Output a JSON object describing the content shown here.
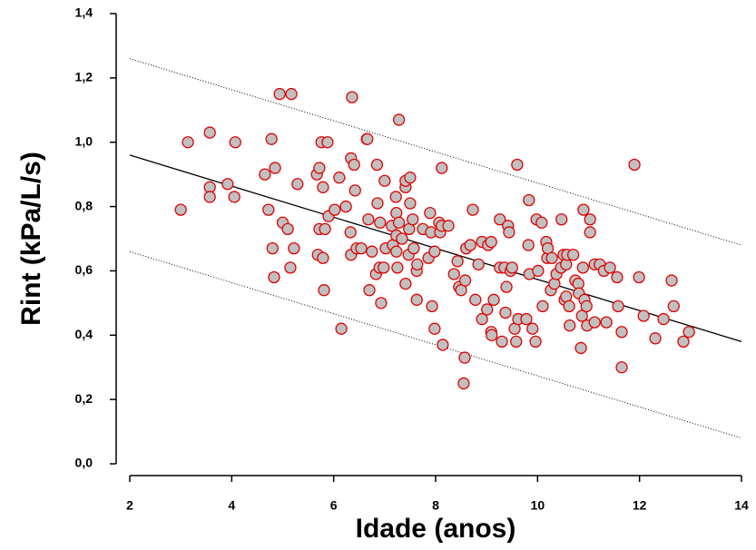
{
  "chart_data": {
    "type": "scatter",
    "x_label": "Idade (anos)",
    "y_label": "Rint (kPa/L/s)",
    "xlim": [
      2,
      14
    ],
    "xticks": [
      2,
      4,
      6,
      8,
      10,
      12,
      14
    ],
    "ylim": [
      0,
      1.4
    ],
    "yticks": [
      {
        "value": 0,
        "label": "0,0"
      },
      {
        "value": 0.2,
        "label": "0,2"
      },
      {
        "value": 0.4,
        "label": "0,4"
      },
      {
        "value": 0.6,
        "label": "0,6"
      },
      {
        "value": 0.8,
        "label": "0,8"
      },
      {
        "value": 1.0,
        "label": "1,0"
      },
      {
        "value": 1.2,
        "label": "1,2"
      },
      {
        "value": 1.4,
        "label": "1,4"
      }
    ],
    "marker_fill": "#c0c0c0",
    "marker_stroke": "#e00000",
    "x": [
      3.0,
      3.14,
      3.57,
      3.57,
      3.57,
      3.92,
      4.07,
      4.05,
      4.65,
      4.78,
      4.85,
      4.72,
      4.8,
      4.83,
      4.94,
      5.17,
      5.0,
      5.1,
      5.22,
      5.15,
      5.29,
      5.67,
      5.72,
      5.76,
      5.88,
      5.79,
      5.72,
      5.83,
      5.69,
      5.79,
      5.81,
      5.9,
      6.02,
      6.11,
      6.24,
      6.15,
      6.33,
      6.36,
      6.34,
      6.4,
      6.42,
      6.34,
      6.45,
      6.54,
      6.65,
      6.66,
      6.68,
      6.7,
      6.75,
      6.83,
      6.85,
      6.86,
      6.9,
      6.91,
      6.93,
      6.98,
      7.0,
      7.02,
      7.14,
      7.16,
      7.23,
      7.23,
      7.22,
      7.23,
      7.25,
      7.28,
      7.28,
      7.34,
      7.41,
      7.41,
      7.5,
      7.41,
      7.47,
      7.5,
      7.48,
      7.55,
      7.57,
      7.63,
      7.63,
      7.64,
      7.75,
      7.86,
      7.89,
      7.93,
      7.91,
      7.98,
      7.98,
      8.07,
      8.12,
      8.09,
      8.12,
      8.14,
      8.25,
      8.36,
      8.43,
      8.46,
      8.5,
      8.55,
      8.57,
      8.58,
      8.6,
      8.68,
      8.73,
      8.78,
      8.84,
      8.91,
      8.91,
      9.01,
      9.09,
      9.1,
      9.03,
      9.09,
      9.14,
      9.26,
      9.26,
      9.35,
      9.37,
      9.3,
      9.39,
      9.42,
      9.44,
      9.47,
      9.5,
      9.55,
      9.58,
      9.6,
      9.62,
      9.82,
      9.83,
      9.84,
      9.78,
      9.9,
      9.96,
      9.98,
      10.01,
      10.08,
      10.1,
      10.17,
      10.19,
      10.2,
      10.26,
      10.28,
      10.33,
      10.37,
      10.46,
      10.47,
      10.51,
      10.53,
      10.56,
      10.56,
      10.58,
      10.62,
      10.63,
      10.7,
      10.74,
      10.8,
      10.81,
      10.85,
      10.87,
      10.89,
      10.92,
      10.9,
      10.96,
      10.97,
      11.03,
      11.03,
      11.12,
      11.12,
      11.22,
      11.3,
      11.35,
      11.42,
      11.56,
      11.58,
      11.65,
      11.65,
      11.9,
      11.99,
      12.08,
      12.31,
      12.47,
      12.63,
      12.67,
      12.86,
      12.97
    ],
    "y": [
      0.79,
      1.0,
      1.03,
      0.86,
      0.83,
      0.87,
      1.0,
      0.83,
      0.9,
      1.01,
      0.92,
      0.79,
      0.67,
      0.58,
      1.15,
      1.15,
      0.75,
      0.73,
      0.67,
      0.61,
      0.87,
      0.9,
      0.92,
      1.0,
      1.0,
      0.86,
      0.73,
      0.73,
      0.65,
      0.64,
      0.54,
      0.77,
      0.79,
      0.89,
      0.8,
      0.42,
      0.72,
      1.14,
      0.95,
      0.93,
      0.85,
      0.65,
      0.67,
      0.67,
      1.01,
      1.01,
      0.76,
      0.54,
      0.66,
      0.59,
      0.93,
      0.81,
      0.61,
      0.75,
      0.5,
      0.61,
      0.88,
      0.67,
      0.74,
      0.68,
      0.78,
      0.71,
      0.83,
      0.66,
      0.61,
      1.07,
      0.75,
      0.7,
      0.86,
      0.88,
      0.89,
      0.56,
      0.65,
      0.81,
      0.73,
      0.76,
      0.67,
      0.6,
      0.51,
      0.62,
      0.73,
      0.64,
      0.78,
      0.49,
      0.72,
      0.66,
      0.42,
      0.75,
      0.92,
      0.72,
      0.74,
      0.37,
      0.74,
      0.59,
      0.63,
      0.55,
      0.54,
      0.25,
      0.33,
      0.57,
      0.67,
      0.68,
      0.79,
      0.51,
      0.62,
      0.69,
      0.45,
      0.48,
      0.41,
      0.4,
      0.68,
      0.69,
      0.51,
      0.61,
      0.76,
      0.61,
      0.47,
      0.38,
      0.55,
      0.74,
      0.72,
      0.6,
      0.61,
      0.42,
      0.38,
      0.93,
      0.45,
      0.68,
      0.82,
      0.59,
      0.45,
      0.42,
      0.38,
      0.76,
      0.6,
      0.75,
      0.49,
      0.69,
      0.64,
      0.67,
      0.54,
      0.64,
      0.56,
      0.59,
      0.61,
      0.76,
      0.65,
      0.51,
      0.62,
      0.52,
      0.65,
      0.49,
      0.43,
      0.65,
      0.57,
      0.56,
      0.53,
      0.36,
      0.46,
      0.61,
      0.51,
      0.79,
      0.49,
      0.43,
      0.76,
      0.72,
      0.44,
      0.62,
      0.62,
      0.6,
      0.44,
      0.61,
      0.58,
      0.49,
      0.3,
      0.41,
      0.93,
      0.58,
      0.46,
      0.39,
      0.45,
      0.57,
      0.49,
      0.38,
      0.41
    ],
    "lines": [
      {
        "style": "solid",
        "x": [
          2,
          14
        ],
        "y": [
          0.96,
          0.38
        ]
      },
      {
        "style": "dotted",
        "x": [
          2,
          14
        ],
        "y": [
          1.26,
          0.68
        ]
      },
      {
        "style": "dotted",
        "x": [
          2,
          14
        ],
        "y": [
          0.66,
          0.08
        ]
      }
    ]
  }
}
